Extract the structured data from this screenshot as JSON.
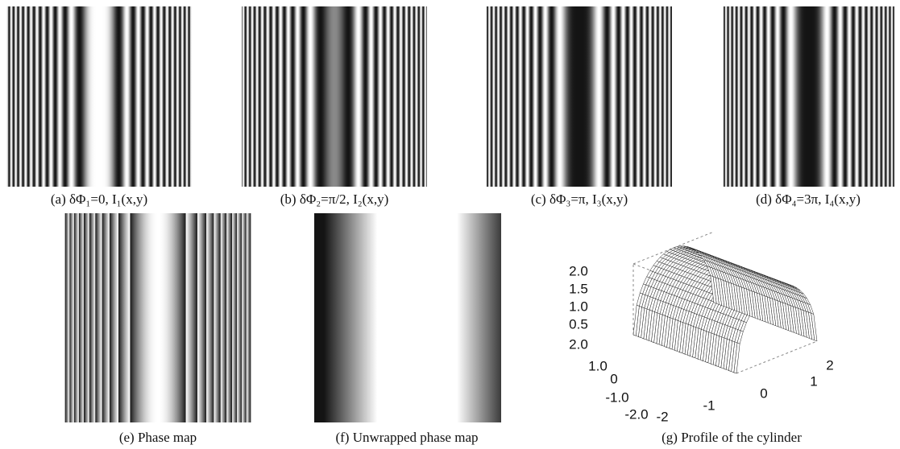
{
  "panels": [
    {
      "caption": "(a) δΦ₁=0, I₁(x,y)"
    },
    {
      "caption": "(b) δΦ₂=π/2, I₂(x,y)"
    },
    {
      "caption": "(c) δΦ₃=π, I₃(x,y)"
    },
    {
      "caption": "(d) δΦ₄=3π, I₄(x,y)"
    },
    {
      "caption": "(e) Phase map"
    },
    {
      "caption": "(f) Unwrapped phase map"
    },
    {
      "caption": "(g) Profile of the cylinder"
    }
  ],
  "plot": {
    "z_ticks": [
      "2.0",
      "1.5",
      "1.0",
      "0.5"
    ],
    "y_ticks": [
      "2.0",
      "1.0",
      "0",
      "-1.0",
      "-2.0"
    ],
    "x_ticks": [
      "-2",
      "-1",
      "0",
      "1",
      "2"
    ]
  }
}
